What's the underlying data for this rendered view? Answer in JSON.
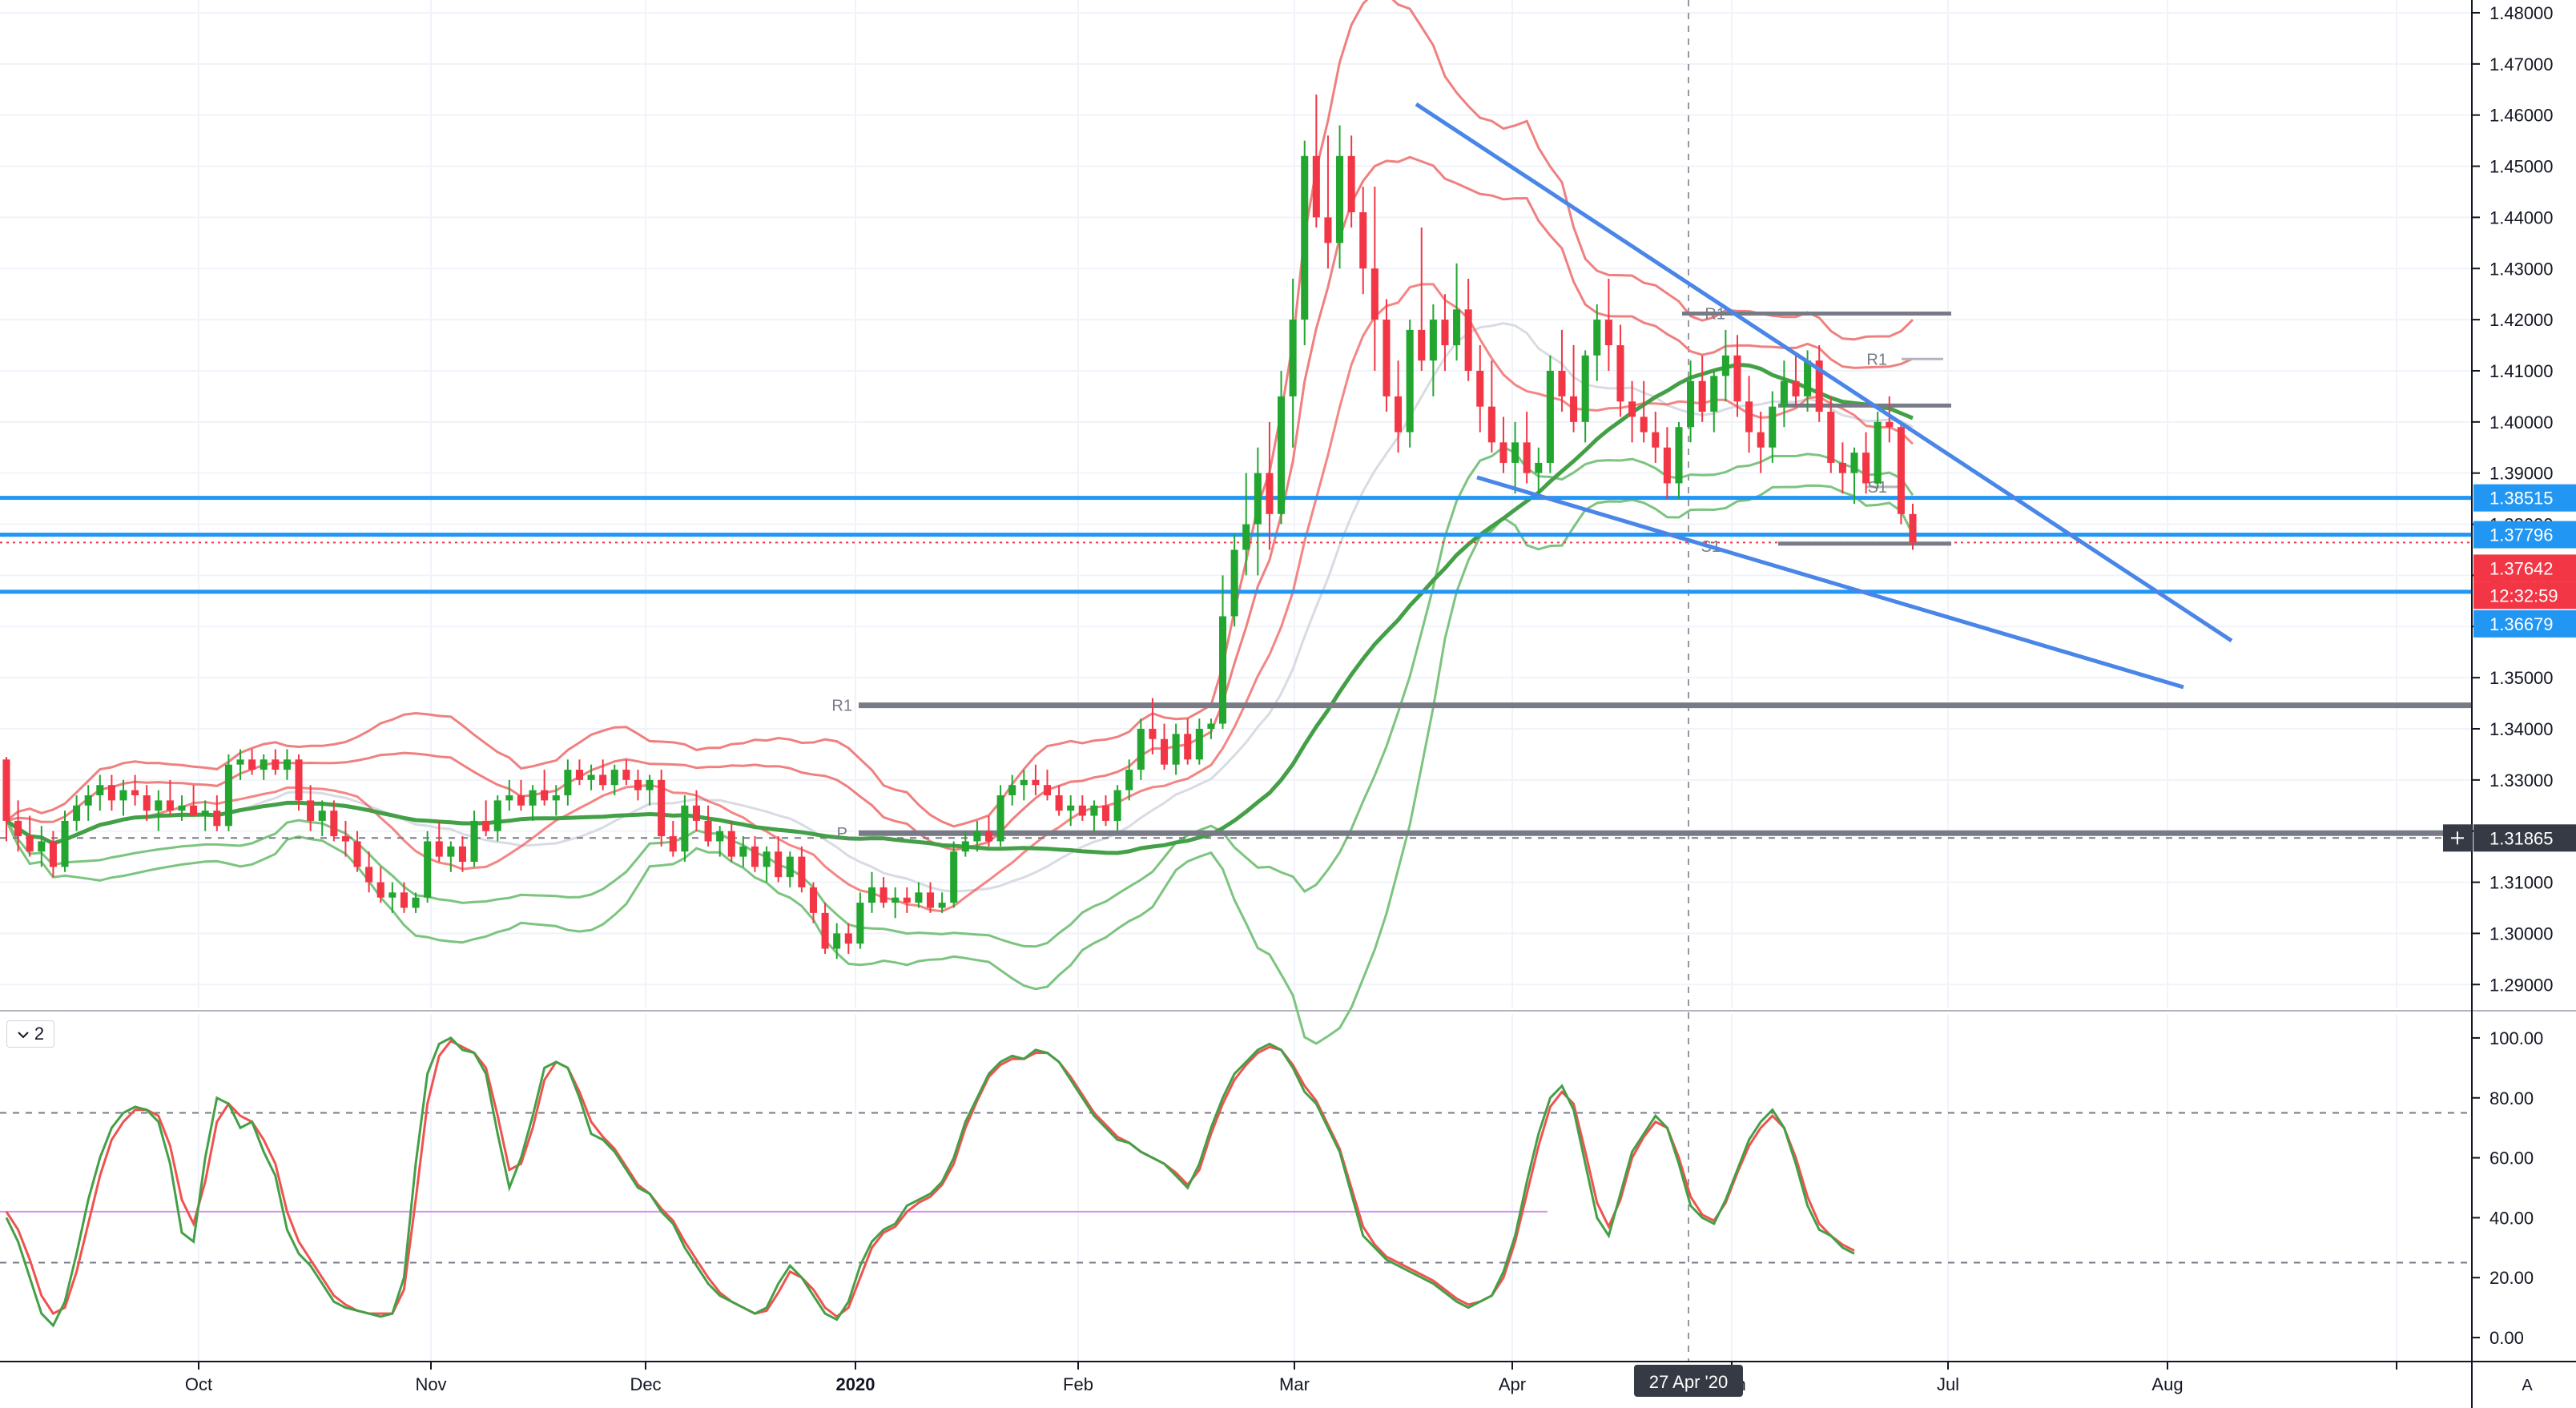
{
  "indicator_pane": {
    "collapse_icon": "chevron-down-icon",
    "count_label": "2"
  },
  "auto_scale_label": "A",
  "crosshair_icon": "plus-icon",
  "colors": {
    "up": "#22a630",
    "down": "#f23645",
    "blue": "#2196f3",
    "trend": "#4a86e8",
    "bb_red": "#f08080",
    "bb_green": "#7cc47f",
    "ma_red": "#ef5350",
    "ma_green": "#43a047",
    "grey_level": "#787b86",
    "stoch_k": "#43a047",
    "stoch_d": "#ef5350"
  },
  "chart_data": {
    "type": "candlestick",
    "price_axis": {
      "ticks": [
        "1.48000",
        "1.47000",
        "1.46000",
        "1.45000",
        "1.44000",
        "1.43000",
        "1.42000",
        "1.41000",
        "1.40000",
        "1.39000",
        "1.38000",
        "1.37000",
        "1.36000",
        "1.35000",
        "1.34000",
        "1.33000",
        "1.32000",
        "1.31000",
        "1.30000",
        "1.29000"
      ],
      "range": [
        1.2855,
        1.4825
      ]
    },
    "indicator_axis": {
      "ticks": [
        "100.00",
        "80.00",
        "60.00",
        "40.00",
        "20.00",
        "0.00"
      ],
      "range": [
        -8,
        108
      ]
    },
    "time_axis": {
      "labels": [
        "Oct",
        "Nov",
        "Dec",
        "2020",
        "Feb",
        "Mar",
        "Apr",
        "27 Apr '20",
        "Jun",
        "Jul",
        "Aug"
      ]
    },
    "price_labels": [
      {
        "value": "1.38515",
        "price": 1.38515,
        "style": "blue"
      },
      {
        "value": "1.37796",
        "price": 1.37796,
        "style": "blue"
      },
      {
        "value": "1.37642",
        "price": 1.37642,
        "style": "red"
      },
      {
        "value": "12:32:59",
        "price": 1.37642,
        "style": "red-countdown"
      },
      {
        "value": "1.36679",
        "price": 1.36679,
        "style": "blue"
      },
      {
        "value": "1.31865",
        "price": 1.31865,
        "style": "dark"
      }
    ],
    "pivot_labels": [
      "R1",
      "P",
      "R1",
      "R1",
      "S1",
      "S1"
    ],
    "candles": [
      [
        1.334,
        1.3345,
        1.318,
        1.322
      ],
      [
        1.322,
        1.326,
        1.316,
        1.319
      ],
      [
        1.319,
        1.323,
        1.315,
        1.316
      ],
      [
        1.316,
        1.321,
        1.313,
        1.318
      ],
      [
        1.318,
        1.32,
        1.311,
        1.313
      ],
      [
        1.313,
        1.324,
        1.312,
        1.322
      ],
      [
        1.322,
        1.327,
        1.32,
        1.325
      ],
      [
        1.325,
        1.329,
        1.322,
        1.327
      ],
      [
        1.327,
        1.331,
        1.324,
        1.329
      ],
      [
        1.329,
        1.331,
        1.324,
        1.326
      ],
      [
        1.326,
        1.33,
        1.323,
        1.328
      ],
      [
        1.328,
        1.331,
        1.325,
        1.327
      ],
      [
        1.327,
        1.329,
        1.322,
        1.324
      ],
      [
        1.324,
        1.328,
        1.32,
        1.326
      ],
      [
        1.326,
        1.33,
        1.323,
        1.324
      ],
      [
        1.324,
        1.327,
        1.322,
        1.325
      ],
      [
        1.325,
        1.329,
        1.323,
        1.323
      ],
      [
        1.323,
        1.326,
        1.32,
        1.324
      ],
      [
        1.324,
        1.327,
        1.32,
        1.321
      ],
      [
        1.321,
        1.335,
        1.32,
        1.333
      ],
      [
        1.333,
        1.336,
        1.33,
        1.334
      ],
      [
        1.334,
        1.336,
        1.331,
        1.332
      ],
      [
        1.332,
        1.335,
        1.33,
        1.334
      ],
      [
        1.334,
        1.336,
        1.331,
        1.332
      ],
      [
        1.332,
        1.336,
        1.33,
        1.334
      ],
      [
        1.334,
        1.335,
        1.324,
        1.326
      ],
      [
        1.326,
        1.329,
        1.32,
        1.322
      ],
      [
        1.322,
        1.326,
        1.319,
        1.324
      ],
      [
        1.324,
        1.326,
        1.318,
        1.319
      ],
      [
        1.319,
        1.322,
        1.315,
        1.318
      ],
      [
        1.318,
        1.32,
        1.312,
        1.313
      ],
      [
        1.313,
        1.316,
        1.308,
        1.31
      ],
      [
        1.31,
        1.313,
        1.306,
        1.307
      ],
      [
        1.307,
        1.31,
        1.304,
        1.308
      ],
      [
        1.308,
        1.31,
        1.304,
        1.305
      ],
      [
        1.305,
        1.308,
        1.304,
        1.307
      ],
      [
        1.307,
        1.32,
        1.306,
        1.318
      ],
      [
        1.318,
        1.322,
        1.314,
        1.315
      ],
      [
        1.315,
        1.318,
        1.312,
        1.317
      ],
      [
        1.317,
        1.319,
        1.312,
        1.314
      ],
      [
        1.314,
        1.324,
        1.313,
        1.322
      ],
      [
        1.322,
        1.326,
        1.319,
        1.32
      ],
      [
        1.32,
        1.327,
        1.318,
        1.326
      ],
      [
        1.326,
        1.33,
        1.324,
        1.327
      ],
      [
        1.327,
        1.33,
        1.324,
        1.325
      ],
      [
        1.325,
        1.329,
        1.322,
        1.328
      ],
      [
        1.328,
        1.332,
        1.325,
        1.326
      ],
      [
        1.326,
        1.329,
        1.323,
        1.327
      ],
      [
        1.327,
        1.334,
        1.325,
        1.332
      ],
      [
        1.332,
        1.334,
        1.329,
        1.33
      ],
      [
        1.33,
        1.333,
        1.328,
        1.331
      ],
      [
        1.331,
        1.334,
        1.328,
        1.329
      ],
      [
        1.329,
        1.333,
        1.327,
        1.332
      ],
      [
        1.332,
        1.334,
        1.329,
        1.33
      ],
      [
        1.33,
        1.332,
        1.326,
        1.328
      ],
      [
        1.328,
        1.331,
        1.325,
        1.33
      ],
      [
        1.33,
        1.332,
        1.317,
        1.319
      ],
      [
        1.319,
        1.322,
        1.315,
        1.316
      ],
      [
        1.316,
        1.327,
        1.314,
        1.325
      ],
      [
        1.325,
        1.328,
        1.32,
        1.322
      ],
      [
        1.322,
        1.325,
        1.317,
        1.318
      ],
      [
        1.318,
        1.321,
        1.315,
        1.32
      ],
      [
        1.32,
        1.322,
        1.314,
        1.315
      ],
      [
        1.315,
        1.319,
        1.313,
        1.317
      ],
      [
        1.317,
        1.319,
        1.312,
        1.313
      ],
      [
        1.313,
        1.317,
        1.31,
        1.316
      ],
      [
        1.316,
        1.319,
        1.31,
        1.311
      ],
      [
        1.311,
        1.316,
        1.309,
        1.315
      ],
      [
        1.315,
        1.317,
        1.308,
        1.309
      ],
      [
        1.309,
        1.31,
        1.302,
        1.304
      ],
      [
        1.304,
        1.306,
        1.296,
        1.297
      ],
      [
        1.297,
        1.302,
        1.295,
        1.3
      ],
      [
        1.3,
        1.302,
        1.296,
        1.298
      ],
      [
        1.298,
        1.308,
        1.297,
        1.306
      ],
      [
        1.306,
        1.312,
        1.304,
        1.309
      ],
      [
        1.309,
        1.311,
        1.305,
        1.306
      ],
      [
        1.306,
        1.309,
        1.303,
        1.307
      ],
      [
        1.307,
        1.309,
        1.304,
        1.306
      ],
      [
        1.306,
        1.31,
        1.305,
        1.308
      ],
      [
        1.308,
        1.31,
        1.304,
        1.305
      ],
      [
        1.305,
        1.308,
        1.304,
        1.306
      ],
      [
        1.306,
        1.318,
        1.305,
        1.316
      ],
      [
        1.316,
        1.32,
        1.315,
        1.318
      ],
      [
        1.318,
        1.322,
        1.316,
        1.32
      ],
      [
        1.32,
        1.323,
        1.317,
        1.318
      ],
      [
        1.318,
        1.329,
        1.317,
        1.327
      ],
      [
        1.327,
        1.331,
        1.325,
        1.329
      ],
      [
        1.329,
        1.332,
        1.326,
        1.33
      ],
      [
        1.33,
        1.333,
        1.327,
        1.329
      ],
      [
        1.329,
        1.332,
        1.326,
        1.327
      ],
      [
        1.327,
        1.329,
        1.323,
        1.324
      ],
      [
        1.324,
        1.327,
        1.321,
        1.325
      ],
      [
        1.325,
        1.327,
        1.322,
        1.323
      ],
      [
        1.323,
        1.326,
        1.32,
        1.325
      ],
      [
        1.325,
        1.327,
        1.321,
        1.322
      ],
      [
        1.322,
        1.329,
        1.32,
        1.328
      ],
      [
        1.328,
        1.334,
        1.326,
        1.332
      ],
      [
        1.332,
        1.342,
        1.33,
        1.34
      ],
      [
        1.34,
        1.346,
        1.335,
        1.338
      ],
      [
        1.338,
        1.341,
        1.332,
        1.333
      ],
      [
        1.333,
        1.341,
        1.331,
        1.339
      ],
      [
        1.339,
        1.342,
        1.333,
        1.334
      ],
      [
        1.334,
        1.342,
        1.333,
        1.34
      ],
      [
        1.34,
        1.342,
        1.338,
        1.341
      ],
      [
        1.341,
        1.37,
        1.34,
        1.362
      ],
      [
        1.362,
        1.378,
        1.36,
        1.375
      ],
      [
        1.375,
        1.39,
        1.37,
        1.38
      ],
      [
        1.38,
        1.395,
        1.37,
        1.39
      ],
      [
        1.39,
        1.4,
        1.375,
        1.382
      ],
      [
        1.382,
        1.41,
        1.38,
        1.405
      ],
      [
        1.405,
        1.428,
        1.395,
        1.42
      ],
      [
        1.42,
        1.455,
        1.415,
        1.452
      ],
      [
        1.452,
        1.464,
        1.438,
        1.44
      ],
      [
        1.44,
        1.456,
        1.43,
        1.435
      ],
      [
        1.435,
        1.458,
        1.43,
        1.452
      ],
      [
        1.452,
        1.456,
        1.438,
        1.441
      ],
      [
        1.441,
        1.446,
        1.425,
        1.43
      ],
      [
        1.43,
        1.446,
        1.41,
        1.42
      ],
      [
        1.42,
        1.424,
        1.402,
        1.405
      ],
      [
        1.405,
        1.412,
        1.394,
        1.398
      ],
      [
        1.398,
        1.42,
        1.395,
        1.418
      ],
      [
        1.418,
        1.438,
        1.41,
        1.412
      ],
      [
        1.412,
        1.423,
        1.405,
        1.42
      ],
      [
        1.42,
        1.425,
        1.41,
        1.415
      ],
      [
        1.415,
        1.431,
        1.412,
        1.422
      ],
      [
        1.422,
        1.428,
        1.408,
        1.41
      ],
      [
        1.41,
        1.415,
        1.398,
        1.403
      ],
      [
        1.403,
        1.412,
        1.394,
        1.396
      ],
      [
        1.396,
        1.401,
        1.39,
        1.392
      ],
      [
        1.392,
        1.4,
        1.386,
        1.396
      ],
      [
        1.396,
        1.402,
        1.388,
        1.39
      ],
      [
        1.39,
        1.395,
        1.386,
        1.392
      ],
      [
        1.392,
        1.413,
        1.39,
        1.41
      ],
      [
        1.41,
        1.418,
        1.402,
        1.405
      ],
      [
        1.405,
        1.415,
        1.398,
        1.4
      ],
      [
        1.4,
        1.414,
        1.396,
        1.413
      ],
      [
        1.413,
        1.423,
        1.408,
        1.42
      ],
      [
        1.42,
        1.428,
        1.41,
        1.415
      ],
      [
        1.415,
        1.419,
        1.401,
        1.404
      ],
      [
        1.404,
        1.408,
        1.396,
        1.401
      ],
      [
        1.401,
        1.408,
        1.396,
        1.398
      ],
      [
        1.398,
        1.402,
        1.392,
        1.395
      ],
      [
        1.395,
        1.399,
        1.385,
        1.388
      ],
      [
        1.388,
        1.4,
        1.385,
        1.399
      ],
      [
        1.399,
        1.412,
        1.396,
        1.408
      ],
      [
        1.408,
        1.413,
        1.4,
        1.402
      ],
      [
        1.402,
        1.41,
        1.398,
        1.409
      ],
      [
        1.409,
        1.418,
        1.404,
        1.413
      ],
      [
        1.413,
        1.417,
        1.401,
        1.404
      ],
      [
        1.404,
        1.409,
        1.394,
        1.398
      ],
      [
        1.398,
        1.402,
        1.39,
        1.395
      ],
      [
        1.395,
        1.406,
        1.392,
        1.403
      ],
      [
        1.403,
        1.412,
        1.399,
        1.408
      ],
      [
        1.408,
        1.413,
        1.403,
        1.405
      ],
      [
        1.405,
        1.414,
        1.402,
        1.412
      ],
      [
        1.412,
        1.415,
        1.4,
        1.402
      ],
      [
        1.402,
        1.405,
        1.39,
        1.392
      ],
      [
        1.392,
        1.396,
        1.386,
        1.39
      ],
      [
        1.39,
        1.395,
        1.384,
        1.394
      ],
      [
        1.394,
        1.398,
        1.386,
        1.388
      ],
      [
        1.388,
        1.402,
        1.387,
        1.4
      ],
      [
        1.4,
        1.405,
        1.396,
        1.399
      ],
      [
        1.399,
        1.4,
        1.38,
        1.382
      ],
      [
        1.382,
        1.384,
        1.375,
        1.3764
      ]
    ],
    "stochastic": {
      "k": [
        40,
        32,
        20,
        8,
        4,
        12,
        28,
        46,
        60,
        70,
        75,
        77,
        76,
        72,
        58,
        35,
        32,
        60,
        80,
        78,
        70,
        72,
        62,
        54,
        36,
        28,
        24,
        18,
        12,
        10,
        9,
        8,
        7,
        8,
        20,
        58,
        88,
        98,
        100,
        96,
        95,
        88,
        68,
        50,
        60,
        74,
        90,
        92,
        90,
        80,
        68,
        66,
        62,
        56,
        50,
        48,
        42,
        38,
        30,
        24,
        18,
        14,
        12,
        10,
        8,
        10,
        18,
        24,
        20,
        14,
        8,
        6,
        12,
        24,
        32,
        36,
        38,
        44,
        46,
        48,
        52,
        60,
        72,
        80,
        88,
        92,
        94,
        93,
        96,
        95,
        92,
        86,
        80,
        74,
        70,
        66,
        65,
        62,
        60,
        58,
        54,
        50,
        58,
        70,
        80,
        88,
        92,
        96,
        98,
        96,
        90,
        82,
        78,
        70,
        62,
        48,
        34,
        30,
        26,
        24,
        22,
        20,
        18,
        15,
        12,
        10,
        12,
        14,
        22,
        34,
        52,
        68,
        80,
        84,
        76,
        58,
        40,
        34,
        48,
        62,
        68,
        74,
        70,
        58,
        44,
        40,
        38,
        46,
        56,
        66,
        72,
        76,
        70,
        58,
        44,
        36,
        34,
        30,
        28
      ],
      "d": [
        42,
        36,
        26,
        14,
        8,
        10,
        22,
        38,
        54,
        66,
        72,
        76,
        76,
        74,
        64,
        46,
        38,
        52,
        72,
        78,
        74,
        72,
        66,
        58,
        42,
        32,
        26,
        20,
        14,
        11,
        9,
        8,
        8,
        8,
        16,
        46,
        78,
        94,
        99,
        97,
        95,
        90,
        74,
        56,
        58,
        70,
        86,
        92,
        90,
        82,
        72,
        67,
        63,
        57,
        51,
        48,
        43,
        39,
        32,
        26,
        20,
        15,
        12,
        10,
        8,
        9,
        15,
        22,
        20,
        16,
        10,
        7,
        10,
        20,
        30,
        35,
        37,
        42,
        45,
        47,
        51,
        58,
        70,
        79,
        87,
        91,
        93,
        93,
        95,
        95,
        92,
        87,
        81,
        75,
        71,
        67,
        65,
        62,
        60,
        58,
        55,
        51,
        56,
        68,
        78,
        86,
        91,
        95,
        97,
        96,
        91,
        84,
        79,
        71,
        63,
        50,
        37,
        31,
        27,
        25,
        23,
        21,
        19,
        16,
        13,
        11,
        12,
        14,
        20,
        32,
        48,
        64,
        77,
        82,
        78,
        62,
        45,
        37,
        46,
        60,
        67,
        72,
        70,
        60,
        47,
        41,
        39,
        45,
        55,
        64,
        70,
        74,
        70,
        60,
        47,
        38,
        34,
        31,
        29
      ]
    }
  }
}
